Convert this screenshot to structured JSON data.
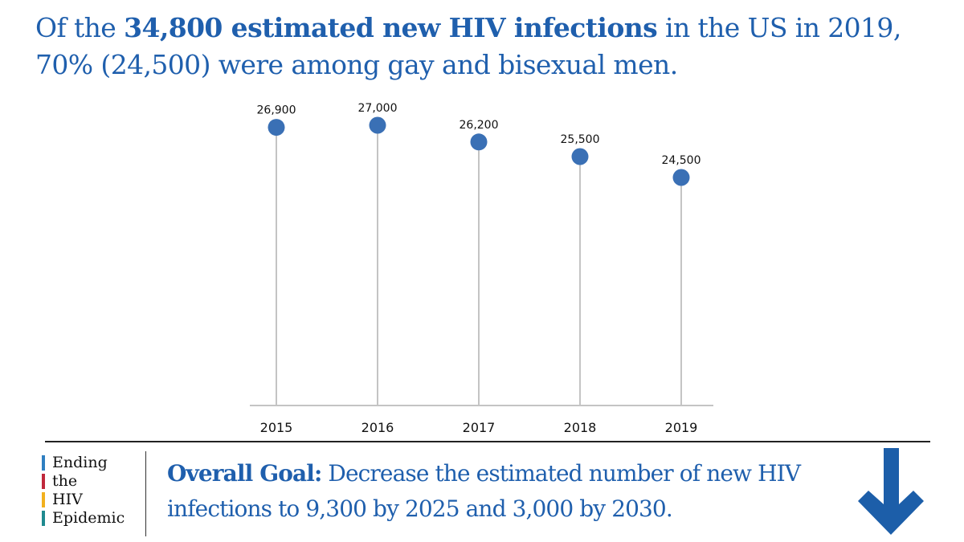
{
  "headline": {
    "part1": "Of the ",
    "bold1": "34,800 estimated new HIV infections",
    "part2": " in the US in 2019, 70% (24,500) were among gay and bisexual men."
  },
  "chart_data": {
    "type": "lollipop",
    "categories": [
      "2015",
      "2016",
      "2017",
      "2018",
      "2019"
    ],
    "values": [
      26900,
      27000,
      26200,
      25500,
      24500
    ],
    "labels": [
      "26,900",
      "27,000",
      "26,200",
      "25,500",
      "24,500"
    ],
    "xlabel": "",
    "ylabel": "",
    "ylim": [
      13500,
      27000
    ],
    "grid": false,
    "colors": {
      "marker": "#3a70b5",
      "stem": "#c4c4c4",
      "axis": "#888888"
    }
  },
  "logo": {
    "lines": [
      {
        "text": "Ending",
        "color": "#2f7fc1"
      },
      {
        "text": "the",
        "color": "#c0283c"
      },
      {
        "text": "HIV",
        "color": "#f2b01e"
      },
      {
        "text": "Epidemic",
        "color": "#1f8a8f"
      }
    ]
  },
  "goal": {
    "label": "Overall Goal:",
    "text": " Decrease the estimated number of new HIV infections to 9,300 by 2025 and 3,000 by 2030."
  },
  "arrow_icon": "arrow-down-icon",
  "colors": {
    "brand_blue": "#1f5fad",
    "arrow": "#1c5ea9"
  }
}
